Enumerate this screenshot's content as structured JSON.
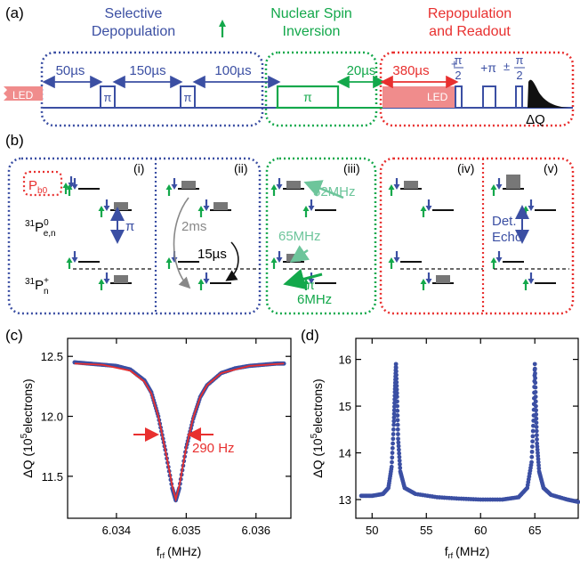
{
  "panel_labels": {
    "a": "(a)",
    "b": "(b)",
    "c": "(c)",
    "d": "(d)"
  },
  "panel_a": {
    "stage1_line1": "Selective",
    "stage1_line2": "Depopulation",
    "stage2_line1": "Nuclear Spin",
    "stage2_line2": "Inversion",
    "stage3_line1": "Repopulation",
    "stage3_line2": "and Readout",
    "led_left": "LED",
    "led_right": "LED",
    "t1": "50µs",
    "t2": "150µs",
    "t3": "100µs",
    "t4": "20µs",
    "t5": "380µs",
    "pi": "π",
    "plus": "+",
    "pm": "±",
    "frac_num": "π",
    "frac_den": "2",
    "plus_pi": "+π",
    "dq": "ΔQ",
    "colors": {
      "blue": "#3b4fa3",
      "green": "#13a84b",
      "red": "#e8302f",
      "led_fill": "#f08c8c"
    }
  },
  "panel_b": {
    "sub_i": "(i)",
    "sub_ii": "(ii)",
    "sub_iii": "(iii)",
    "sub_iv": "(iv)",
    "sub_v": "(v)",
    "pb0_main": "P",
    "pb0_sub": "b0",
    "p0_sup": "31",
    "p0_main": "P",
    "p0_sup2": "0",
    "p0_sub": "e,n",
    "pplus_sup": "31",
    "pplus_main": "P",
    "pplus_sup2": "+",
    "pplus_sub": "n",
    "pi": "π",
    "t_2ms": "2ms",
    "t_15us": "15µs",
    "f52": "52MHz",
    "f65": "65MHz",
    "f6": "6MHz",
    "det": "Det.",
    "echo": "Echo"
  },
  "chart_data": [
    {
      "type": "scatter",
      "panel": "(c)",
      "xlabel_main": "f",
      "xlabel_sub": "rf",
      "xlabel_unit": "(MHz)",
      "ylabel_main": "ΔQ (10",
      "ylabel_sup": "5",
      "ylabel_tail": "electrons)",
      "xlim": [
        6.0333,
        6.0365
      ],
      "ylim": [
        11.15,
        12.65
      ],
      "xticks": [
        "6.034",
        "6.035",
        "6.036"
      ],
      "xtick_values": [
        6.034,
        6.035,
        6.036
      ],
      "yticks": [
        "11.5",
        "12.0",
        "12.5"
      ],
      "ytick_values": [
        11.5,
        12.0,
        12.5
      ],
      "annotation": "290 Hz",
      "series": [
        {
          "kind": "points",
          "color": "#3b4fa3",
          "x": [
            6.0334,
            6.0336,
            6.0338,
            6.034,
            6.0342,
            6.0344,
            6.0345,
            6.0346,
            6.0347,
            6.0348,
            6.03485,
            6.0349,
            6.035,
            6.0351,
            6.0352,
            6.0353,
            6.0355,
            6.0357,
            6.0359,
            6.0361,
            6.0363,
            6.0364
          ],
          "y": [
            12.45,
            12.44,
            12.43,
            12.42,
            12.39,
            12.3,
            12.2,
            12.0,
            11.72,
            11.4,
            11.3,
            11.4,
            11.74,
            11.98,
            12.16,
            12.26,
            12.36,
            12.4,
            12.42,
            12.43,
            12.44,
            12.44
          ]
        },
        {
          "kind": "line",
          "color": "#e8302f",
          "x": [
            6.0334,
            6.0338,
            6.0342,
            6.0344,
            6.0345,
            6.0346,
            6.0347,
            6.0348,
            6.03485,
            6.0349,
            6.035,
            6.0351,
            6.0352,
            6.0353,
            6.0355,
            6.0359,
            6.0364
          ],
          "y": [
            12.44,
            12.43,
            12.38,
            12.29,
            12.19,
            12.0,
            11.72,
            11.42,
            11.31,
            11.42,
            11.74,
            11.99,
            12.16,
            12.26,
            12.36,
            12.42,
            12.44
          ]
        }
      ]
    },
    {
      "type": "scatter",
      "panel": "(d)",
      "xlabel_main": "f",
      "xlabel_sub": "rf",
      "xlabel_unit": "(MHz)",
      "ylabel_main": "ΔQ (10",
      "ylabel_sup": "5",
      "ylabel_tail": "electrons)",
      "xlim": [
        48.5,
        69
      ],
      "ylim": [
        12.6,
        16.45
      ],
      "xticks": [
        "50",
        "55",
        "60",
        "65"
      ],
      "xtick_values": [
        50,
        55,
        60,
        65
      ],
      "yticks": [
        "13",
        "14",
        "15",
        "16"
      ],
      "ytick_values": [
        13,
        14,
        15,
        16
      ],
      "series": [
        {
          "kind": "points",
          "color": "#3b4fa3",
          "x": [
            49,
            50,
            51,
            51.5,
            51.8,
            52,
            52.1,
            52.2,
            52.3,
            52.4,
            52.6,
            53,
            54,
            56,
            58,
            60,
            62,
            63.5,
            64.3,
            64.7,
            64.9,
            65,
            65.1,
            65.2,
            65.4,
            65.8,
            66.5,
            68,
            69
          ],
          "y": [
            13.08,
            13.08,
            13.12,
            13.25,
            13.7,
            14.6,
            15.3,
            15.9,
            15.2,
            14.3,
            13.6,
            13.25,
            13.12,
            13.05,
            13.02,
            13.0,
            13.0,
            13.05,
            13.25,
            13.8,
            14.8,
            15.9,
            15.0,
            14.2,
            13.6,
            13.25,
            13.1,
            13.0,
            12.95
          ]
        }
      ]
    }
  ]
}
